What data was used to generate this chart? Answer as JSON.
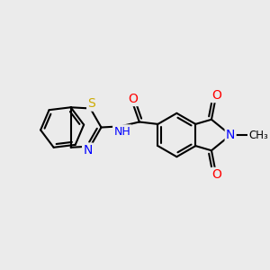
{
  "background_color": "#ebebeb",
  "bond_color": "#000000",
  "bond_width": 1.5,
  "atom_colors": {
    "O": "#ff0000",
    "N": "#0000ff",
    "S": "#ccaa00",
    "H": "#555555",
    "C": "#000000"
  },
  "font_size": 9,
  "figsize": [
    3.0,
    3.0
  ],
  "dpi": 100
}
